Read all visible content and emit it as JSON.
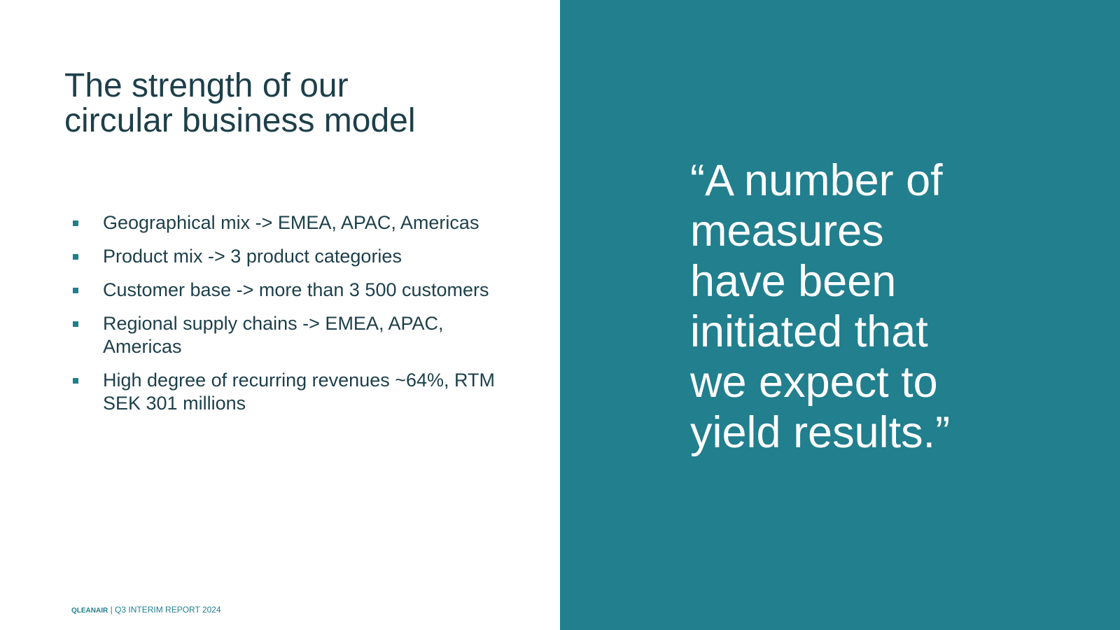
{
  "slide": {
    "title": [
      "The strength of our",
      "circular business model"
    ],
    "bullets": [
      [
        "Geographical mix -> EMEA, APAC, Americas"
      ],
      [
        "Product mix -> 3 product categories"
      ],
      [
        "Customer base -> more than 3 500 customers"
      ],
      [
        "Regional supply chains -> EMEA, APAC,",
        "Americas"
      ],
      [
        "High degree of recurring revenues ~64%, RTM",
        "SEK 301 millions"
      ]
    ],
    "quote": [
      "“A number of",
      "measures",
      "have been",
      "initiated that",
      "we expect to",
      "yield results.”"
    ],
    "footer": {
      "brand": "QLEANAIR",
      "report": "| Q3 INTERIM REPORT 2024"
    }
  }
}
